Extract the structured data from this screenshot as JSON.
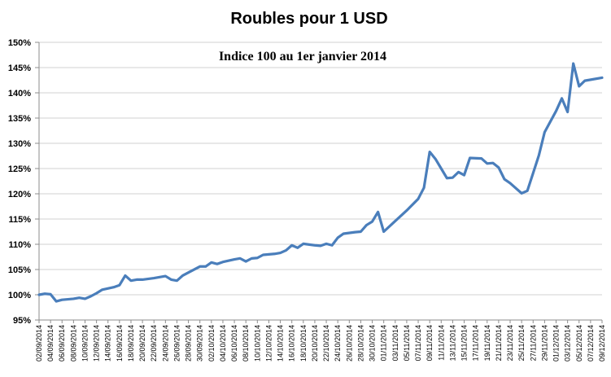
{
  "chart_data": {
    "type": "line",
    "title": "Roubles pour 1 USD",
    "subtitle": "Indice 100 au 1er janvier 2014",
    "xlabel": "",
    "ylabel": "",
    "ylim": [
      95,
      150
    ],
    "y_ticks": [
      95,
      100,
      105,
      110,
      115,
      120,
      125,
      130,
      135,
      140,
      145,
      150
    ],
    "y_tick_labels": [
      "95%",
      "100%",
      "105%",
      "110%",
      "115%",
      "120%",
      "125%",
      "130%",
      "135%",
      "140%",
      "145%",
      "150%"
    ],
    "x_start": "2014-09-02",
    "x_end": "2014-12-09",
    "x_tick_labels": [
      "02/09/2014",
      "04/09/2014",
      "06/09/2014",
      "08/09/2014",
      "10/09/2014",
      "12/09/2014",
      "14/09/2014",
      "16/09/2014",
      "18/09/2014",
      "20/09/2014",
      "22/09/2014",
      "24/09/2014",
      "26/09/2014",
      "28/09/2014",
      "30/09/2014",
      "02/10/2014",
      "04/10/2014",
      "06/10/2014",
      "08/10/2014",
      "10/10/2014",
      "12/10/2014",
      "14/10/2014",
      "16/10/2014",
      "18/10/2014",
      "20/10/2014",
      "22/10/2014",
      "24/10/2014",
      "26/10/2014",
      "28/10/2014",
      "30/10/2014",
      "01/11/2014",
      "03/11/2014",
      "05/11/2014",
      "07/11/2014",
      "09/11/2014",
      "11/11/2014",
      "13/11/2014",
      "15/11/2014",
      "17/11/2014",
      "19/11/2014",
      "21/11/2014",
      "23/11/2014",
      "25/11/2014",
      "27/11/2014",
      "29/11/2014",
      "01/12/2014",
      "03/12/2014",
      "05/12/2014",
      "07/12/2014",
      "09/12/2014"
    ],
    "grid": true,
    "series": [
      {
        "color": "#4a7ebb",
        "points": [
          [
            "2014-09-02",
            100.0
          ],
          [
            "2014-09-03",
            100.2
          ],
          [
            "2014-09-04",
            100.1
          ],
          [
            "2014-09-05",
            98.7
          ],
          [
            "2014-09-06",
            99.0
          ],
          [
            "2014-09-08",
            99.2
          ],
          [
            "2014-09-09",
            99.4
          ],
          [
            "2014-09-10",
            99.2
          ],
          [
            "2014-09-11",
            99.7
          ],
          [
            "2014-09-12",
            100.3
          ],
          [
            "2014-09-13",
            101.0
          ],
          [
            "2014-09-15",
            101.5
          ],
          [
            "2014-09-16",
            101.9
          ],
          [
            "2014-09-17",
            103.8
          ],
          [
            "2014-09-18",
            102.8
          ],
          [
            "2014-09-19",
            103.0
          ],
          [
            "2014-09-20",
            103.0
          ],
          [
            "2014-09-22",
            103.3
          ],
          [
            "2014-09-24",
            103.7
          ],
          [
            "2014-09-25",
            103.0
          ],
          [
            "2014-09-26",
            102.8
          ],
          [
            "2014-09-27",
            103.8
          ],
          [
            "2014-09-28",
            104.4
          ],
          [
            "2014-09-30",
            105.6
          ],
          [
            "2014-10-01",
            105.6
          ],
          [
            "2014-10-02",
            106.4
          ],
          [
            "2014-10-03",
            106.1
          ],
          [
            "2014-10-04",
            106.5
          ],
          [
            "2014-10-06",
            107.0
          ],
          [
            "2014-10-07",
            107.2
          ],
          [
            "2014-10-08",
            106.6
          ],
          [
            "2014-10-09",
            107.2
          ],
          [
            "2014-10-10",
            107.3
          ],
          [
            "2014-10-11",
            107.9
          ],
          [
            "2014-10-13",
            108.1
          ],
          [
            "2014-10-14",
            108.3
          ],
          [
            "2014-10-15",
            108.8
          ],
          [
            "2014-10-16",
            109.8
          ],
          [
            "2014-10-17",
            109.3
          ],
          [
            "2014-10-18",
            110.1
          ],
          [
            "2014-10-20",
            109.8
          ],
          [
            "2014-10-21",
            109.7
          ],
          [
            "2014-10-22",
            110.1
          ],
          [
            "2014-10-23",
            109.8
          ],
          [
            "2014-10-24",
            111.3
          ],
          [
            "2014-10-25",
            112.1
          ],
          [
            "2014-10-27",
            112.4
          ],
          [
            "2014-10-28",
            112.5
          ],
          [
            "2014-10-29",
            113.8
          ],
          [
            "2014-10-30",
            114.5
          ],
          [
            "2014-10-31",
            116.4
          ],
          [
            "2014-11-01",
            112.5
          ],
          [
            "2014-11-03",
            114.6
          ],
          [
            "2014-11-05",
            116.7
          ],
          [
            "2014-11-07",
            119.0
          ],
          [
            "2014-11-08",
            121.2
          ],
          [
            "2014-11-09",
            128.3
          ],
          [
            "2014-11-10",
            126.9
          ],
          [
            "2014-11-11",
            125.0
          ],
          [
            "2014-11-12",
            123.1
          ],
          [
            "2014-11-13",
            123.2
          ],
          [
            "2014-11-14",
            124.3
          ],
          [
            "2014-11-15",
            123.7
          ],
          [
            "2014-11-16",
            127.1
          ],
          [
            "2014-11-18",
            127.0
          ],
          [
            "2014-11-19",
            126.0
          ],
          [
            "2014-11-20",
            126.1
          ],
          [
            "2014-11-21",
            125.2
          ],
          [
            "2014-11-22",
            122.9
          ],
          [
            "2014-11-23",
            122.1
          ],
          [
            "2014-11-25",
            120.1
          ],
          [
            "2014-11-26",
            120.6
          ],
          [
            "2014-11-27",
            124.1
          ],
          [
            "2014-11-28",
            127.6
          ],
          [
            "2014-11-29",
            132.2
          ],
          [
            "2014-12-01",
            136.4
          ],
          [
            "2014-12-02",
            138.9
          ],
          [
            "2014-12-03",
            136.2
          ],
          [
            "2014-12-04",
            145.8
          ],
          [
            "2014-12-05",
            141.3
          ],
          [
            "2014-12-06",
            142.4
          ],
          [
            "2014-12-09",
            143.0
          ]
        ]
      }
    ]
  }
}
